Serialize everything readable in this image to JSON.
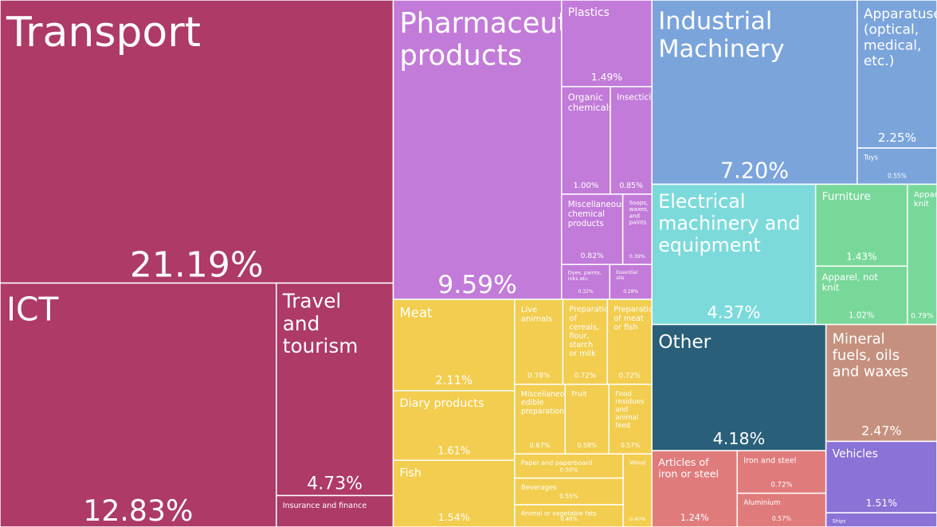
{
  "chart_data": {
    "type": "treemap",
    "categories": [
      "Transport",
      "ICT",
      "Travel and tourism",
      "Insurance and finance",
      "Pharmaceutical products",
      "Plastics",
      "Organic chemicals",
      "Insecticides",
      "Miscellaneous chemical products",
      "Soaps, waxes, and paints",
      "Dyes, paints, inks etc.",
      "Essential oils",
      "Meat",
      "Diary products",
      "Fish",
      "Live animals",
      "Preparations of cereals, flour, starch or milk",
      "Preparations of meat or fish",
      "Miscellaneous edible preparations",
      "Fruit",
      "Food residues and animal feed",
      "Paper and paperboard",
      "Beverages",
      "Animal or vegetable fats",
      "Wood",
      "Industrial Machinery",
      "Apparatuses (optical, medical, etc.)",
      "Toys",
      "Electrical machinery and equipment",
      "Furniture",
      "Apparel, not knit",
      "Apparel, knit",
      "Other",
      "Articles of iron or steel",
      "Iron and steel",
      "Aluminium",
      "Mineral fuels, oils and waxes",
      "Vehicles",
      "Ships"
    ],
    "values": [
      21.19,
      12.83,
      4.73,
      0.7,
      9.59,
      1.49,
      1.0,
      0.85,
      0.82,
      0.39,
      0.32,
      0.28,
      2.11,
      1.61,
      1.54,
      0.78,
      0.72,
      0.72,
      0.67,
      0.58,
      0.57,
      0.5,
      0.55,
      0.46,
      0.4,
      7.2,
      2.25,
      0.55,
      4.37,
      1.43,
      1.02,
      0.79,
      4.18,
      1.24,
      0.72,
      0.57,
      2.47,
      1.51,
      0.3
    ],
    "value_labels": [
      "21.19%",
      "12.83%",
      "4.73%",
      null,
      "9.59%",
      "1.49%",
      "1.00%",
      "0.85%",
      "0.82%",
      "0.39%",
      "0.32%",
      "0.28%",
      "2.11%",
      "1.61%",
      "1.54%",
      "0.78%",
      "0.72%",
      "0.72%",
      "0.67%",
      "0.58%",
      "0.57%",
      "0.50%",
      "0.55%",
      "0.46%",
      "0.40%",
      "7.20%",
      "2.25%",
      "0.55%",
      "4.37%",
      "1.43%",
      "1.02%",
      "0.79%",
      "4.18%",
      "1.24%",
      "0.72%",
      "0.57%",
      "2.47%",
      "1.51%",
      null
    ],
    "colors": [
      "#ad3a67",
      "#ad3a67",
      "#ad3a67",
      "#ad3a67",
      "#c27bd8",
      "#c27bd8",
      "#c27bd8",
      "#c27bd8",
      "#c27bd8",
      "#c27bd8",
      "#c27bd8",
      "#c27bd8",
      "#f2cd4f",
      "#f2cd4f",
      "#f2cd4f",
      "#f2cd4f",
      "#f2cd4f",
      "#f2cd4f",
      "#f2cd4f",
      "#f2cd4f",
      "#f2cd4f",
      "#f2cd4f",
      "#f2cd4f",
      "#f2cd4f",
      "#f2cd4f",
      "#7ba4db",
      "#7ba4db",
      "#7ba4db",
      "#7ddadb",
      "#78d89a",
      "#78d89a",
      "#78d89a",
      "#295f78",
      "#e07b7c",
      "#e07b7c",
      "#e07b7c",
      "#c5917e",
      "#8a72d6",
      "#8a72d6"
    ]
  }
}
